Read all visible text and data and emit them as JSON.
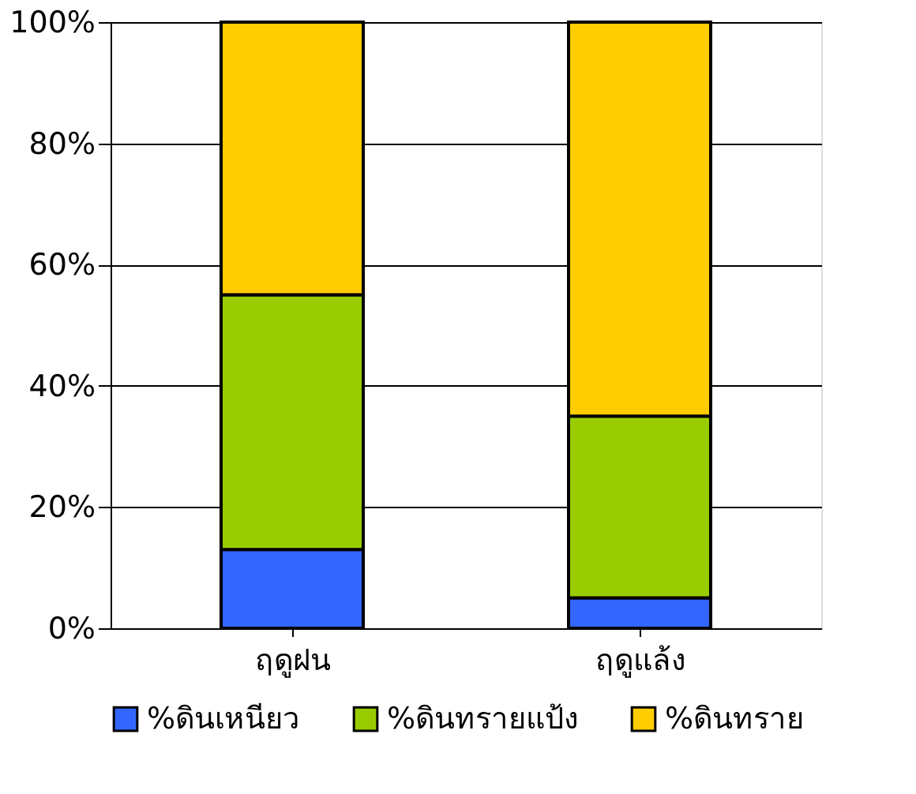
{
  "chart_data": {
    "type": "bar",
    "stacked": true,
    "categories": [
      "ฤดูฝน",
      "ฤดูแล้ง"
    ],
    "series": [
      {
        "name": "%ดินเหนียว",
        "color": "#3366ff",
        "values": [
          13,
          5
        ]
      },
      {
        "name": "%ดินทรายแป้ง",
        "color": "#99cc00",
        "values": [
          42,
          30
        ]
      },
      {
        "name": "%ดินทราย",
        "color": "#ffcc00",
        "values": [
          45,
          65
        ]
      }
    ],
    "ylim": [
      0,
      100
    ],
    "yticks": [
      {
        "value": 0,
        "label": "0%"
      },
      {
        "value": 20,
        "label": "20%"
      },
      {
        "value": 40,
        "label": "40%"
      },
      {
        "value": 60,
        "label": "60%"
      },
      {
        "value": 80,
        "label": "80%"
      },
      {
        "value": 100,
        "label": "100%"
      }
    ],
    "grid": "y",
    "legend": "bottom"
  }
}
